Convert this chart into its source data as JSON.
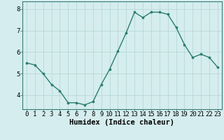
{
  "x": [
    0,
    1,
    2,
    3,
    4,
    5,
    6,
    7,
    8,
    9,
    10,
    11,
    12,
    13,
    14,
    15,
    16,
    17,
    18,
    19,
    20,
    21,
    22,
    23
  ],
  "y": [
    5.5,
    5.4,
    5.0,
    4.5,
    4.2,
    3.65,
    3.65,
    3.55,
    3.7,
    4.5,
    5.2,
    6.05,
    6.9,
    7.85,
    7.6,
    7.85,
    7.85,
    7.75,
    7.15,
    6.35,
    5.75,
    5.9,
    5.75,
    5.3
  ],
  "line_color": "#2a7d6e",
  "marker": "o",
  "marker_size": 2.2,
  "line_width": 1.0,
  "bg_color": "#d5edee",
  "grid_color": "#b8d8d8",
  "xlabel": "Humidex (Indice chaleur)",
  "xlabel_fontsize": 7.5,
  "tick_fontsize": 6.5,
  "ylim": [
    3.35,
    8.35
  ],
  "xlim": [
    -0.5,
    23.5
  ],
  "yticks": [
    4,
    5,
    6,
    7,
    8
  ],
  "xticks": [
    0,
    1,
    2,
    3,
    4,
    5,
    6,
    7,
    8,
    9,
    10,
    11,
    12,
    13,
    14,
    15,
    16,
    17,
    18,
    19,
    20,
    21,
    22,
    23
  ],
  "xtick_labels": [
    "0",
    "1",
    "2",
    "3",
    "4",
    "5",
    "6",
    "7",
    "8",
    "9",
    "10",
    "11",
    "12",
    "13",
    "14",
    "15",
    "16",
    "17",
    "18",
    "19",
    "20",
    "21",
    "22",
    "23"
  ]
}
